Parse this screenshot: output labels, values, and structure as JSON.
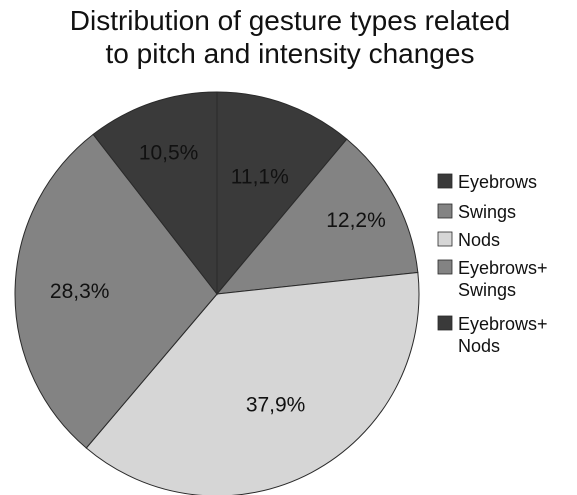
{
  "chart_data": {
    "type": "pie",
    "title_lines": [
      "Distribution of gesture types related",
      "to pitch and intensity changes"
    ],
    "slices": [
      {
        "category": "Eyebrows+\nNods",
        "value": 11.1,
        "label": "11,1%",
        "color": "#3a3a3a"
      },
      {
        "category": "Eyebrows+\nSwings",
        "value": 12.2,
        "label": "12,2%",
        "color": "#838383"
      },
      {
        "category": "Nods",
        "value": 37.9,
        "label": "37,9%",
        "color": "#d6d6d6"
      },
      {
        "category": "Swings",
        "value": 28.3,
        "label": "28,3%",
        "color": "#838383"
      },
      {
        "category": "Eyebrows",
        "value": 10.5,
        "label": "10,5%",
        "color": "#3a3a3a"
      }
    ],
    "legend": [
      {
        "label": "Eyebrows",
        "color": "#3a3a3a"
      },
      {
        "label": "Swings",
        "color": "#838383"
      },
      {
        "label": "Nods",
        "color": "#d6d6d6"
      },
      {
        "label": "Eyebrows+\nSwings",
        "color": "#838383"
      },
      {
        "label": "Eyebrows+\nNods",
        "color": "#3a3a3a"
      }
    ],
    "legend_position": "right",
    "start_angle": "12 o'clock",
    "direction": "clockwise"
  }
}
